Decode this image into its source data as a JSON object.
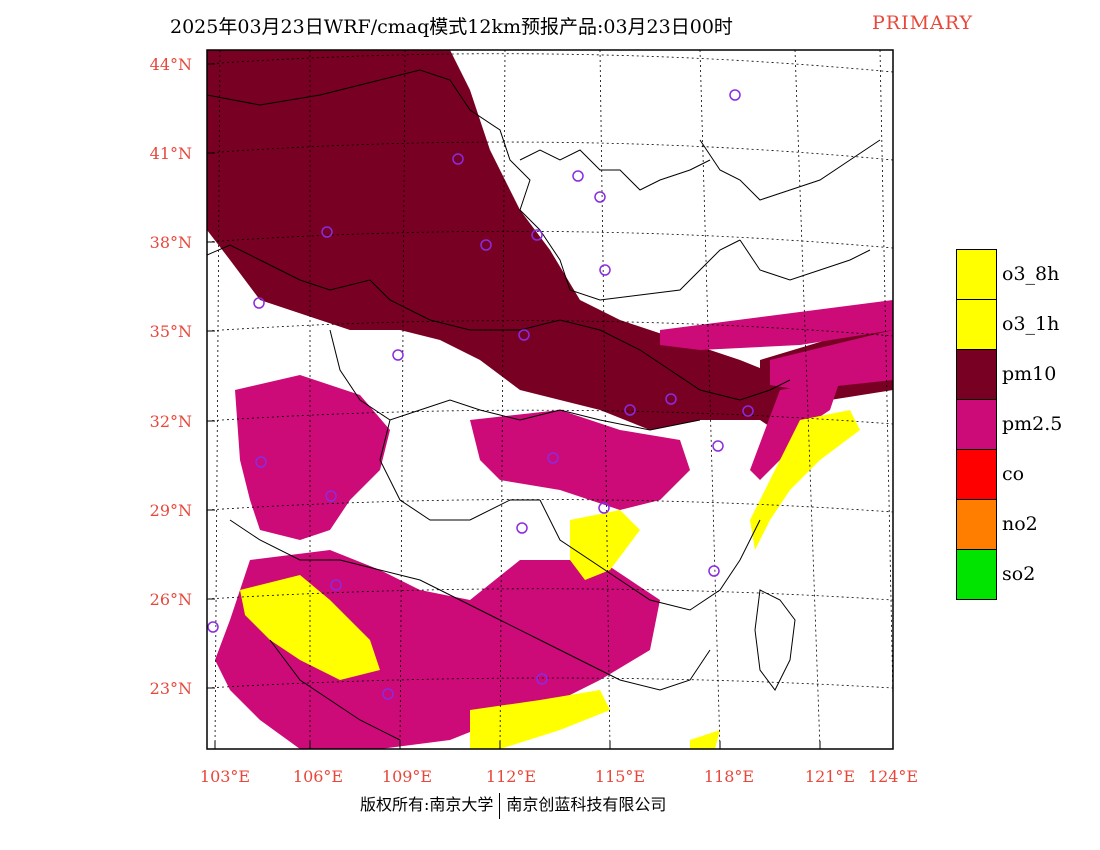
{
  "title": {
    "text": "2025年03月23日WRF/cmaq模式12km预报产品:03月23日00时",
    "tag": "PRIMARY",
    "tag_color": "#e8473a"
  },
  "axes": {
    "lat_labels": [
      "44°N",
      "41°N",
      "38°N",
      "35°N",
      "32°N",
      "29°N",
      "26°N",
      "23°N"
    ],
    "lon_labels": [
      "103°E",
      "106°E",
      "109°E",
      "112°E",
      "115°E",
      "118°E",
      "121°E",
      "124°E"
    ],
    "label_color": "#e8473a"
  },
  "legend": {
    "items": [
      {
        "label": "o3_8h",
        "color": "#ffff00"
      },
      {
        "label": "o3_1h",
        "color": "#ffff00"
      },
      {
        "label": "pm10",
        "color": "#780023"
      },
      {
        "label": "pm2.5",
        "color": "#cc0a78"
      },
      {
        "label": "co",
        "color": "#ff0000"
      },
      {
        "label": "no2",
        "color": "#ff7e00"
      },
      {
        "label": "so2",
        "color": "#00e400"
      }
    ]
  },
  "footer": {
    "left": "版权所有:南京大学",
    "right": "南京创蓝科技有限公司"
  }
}
